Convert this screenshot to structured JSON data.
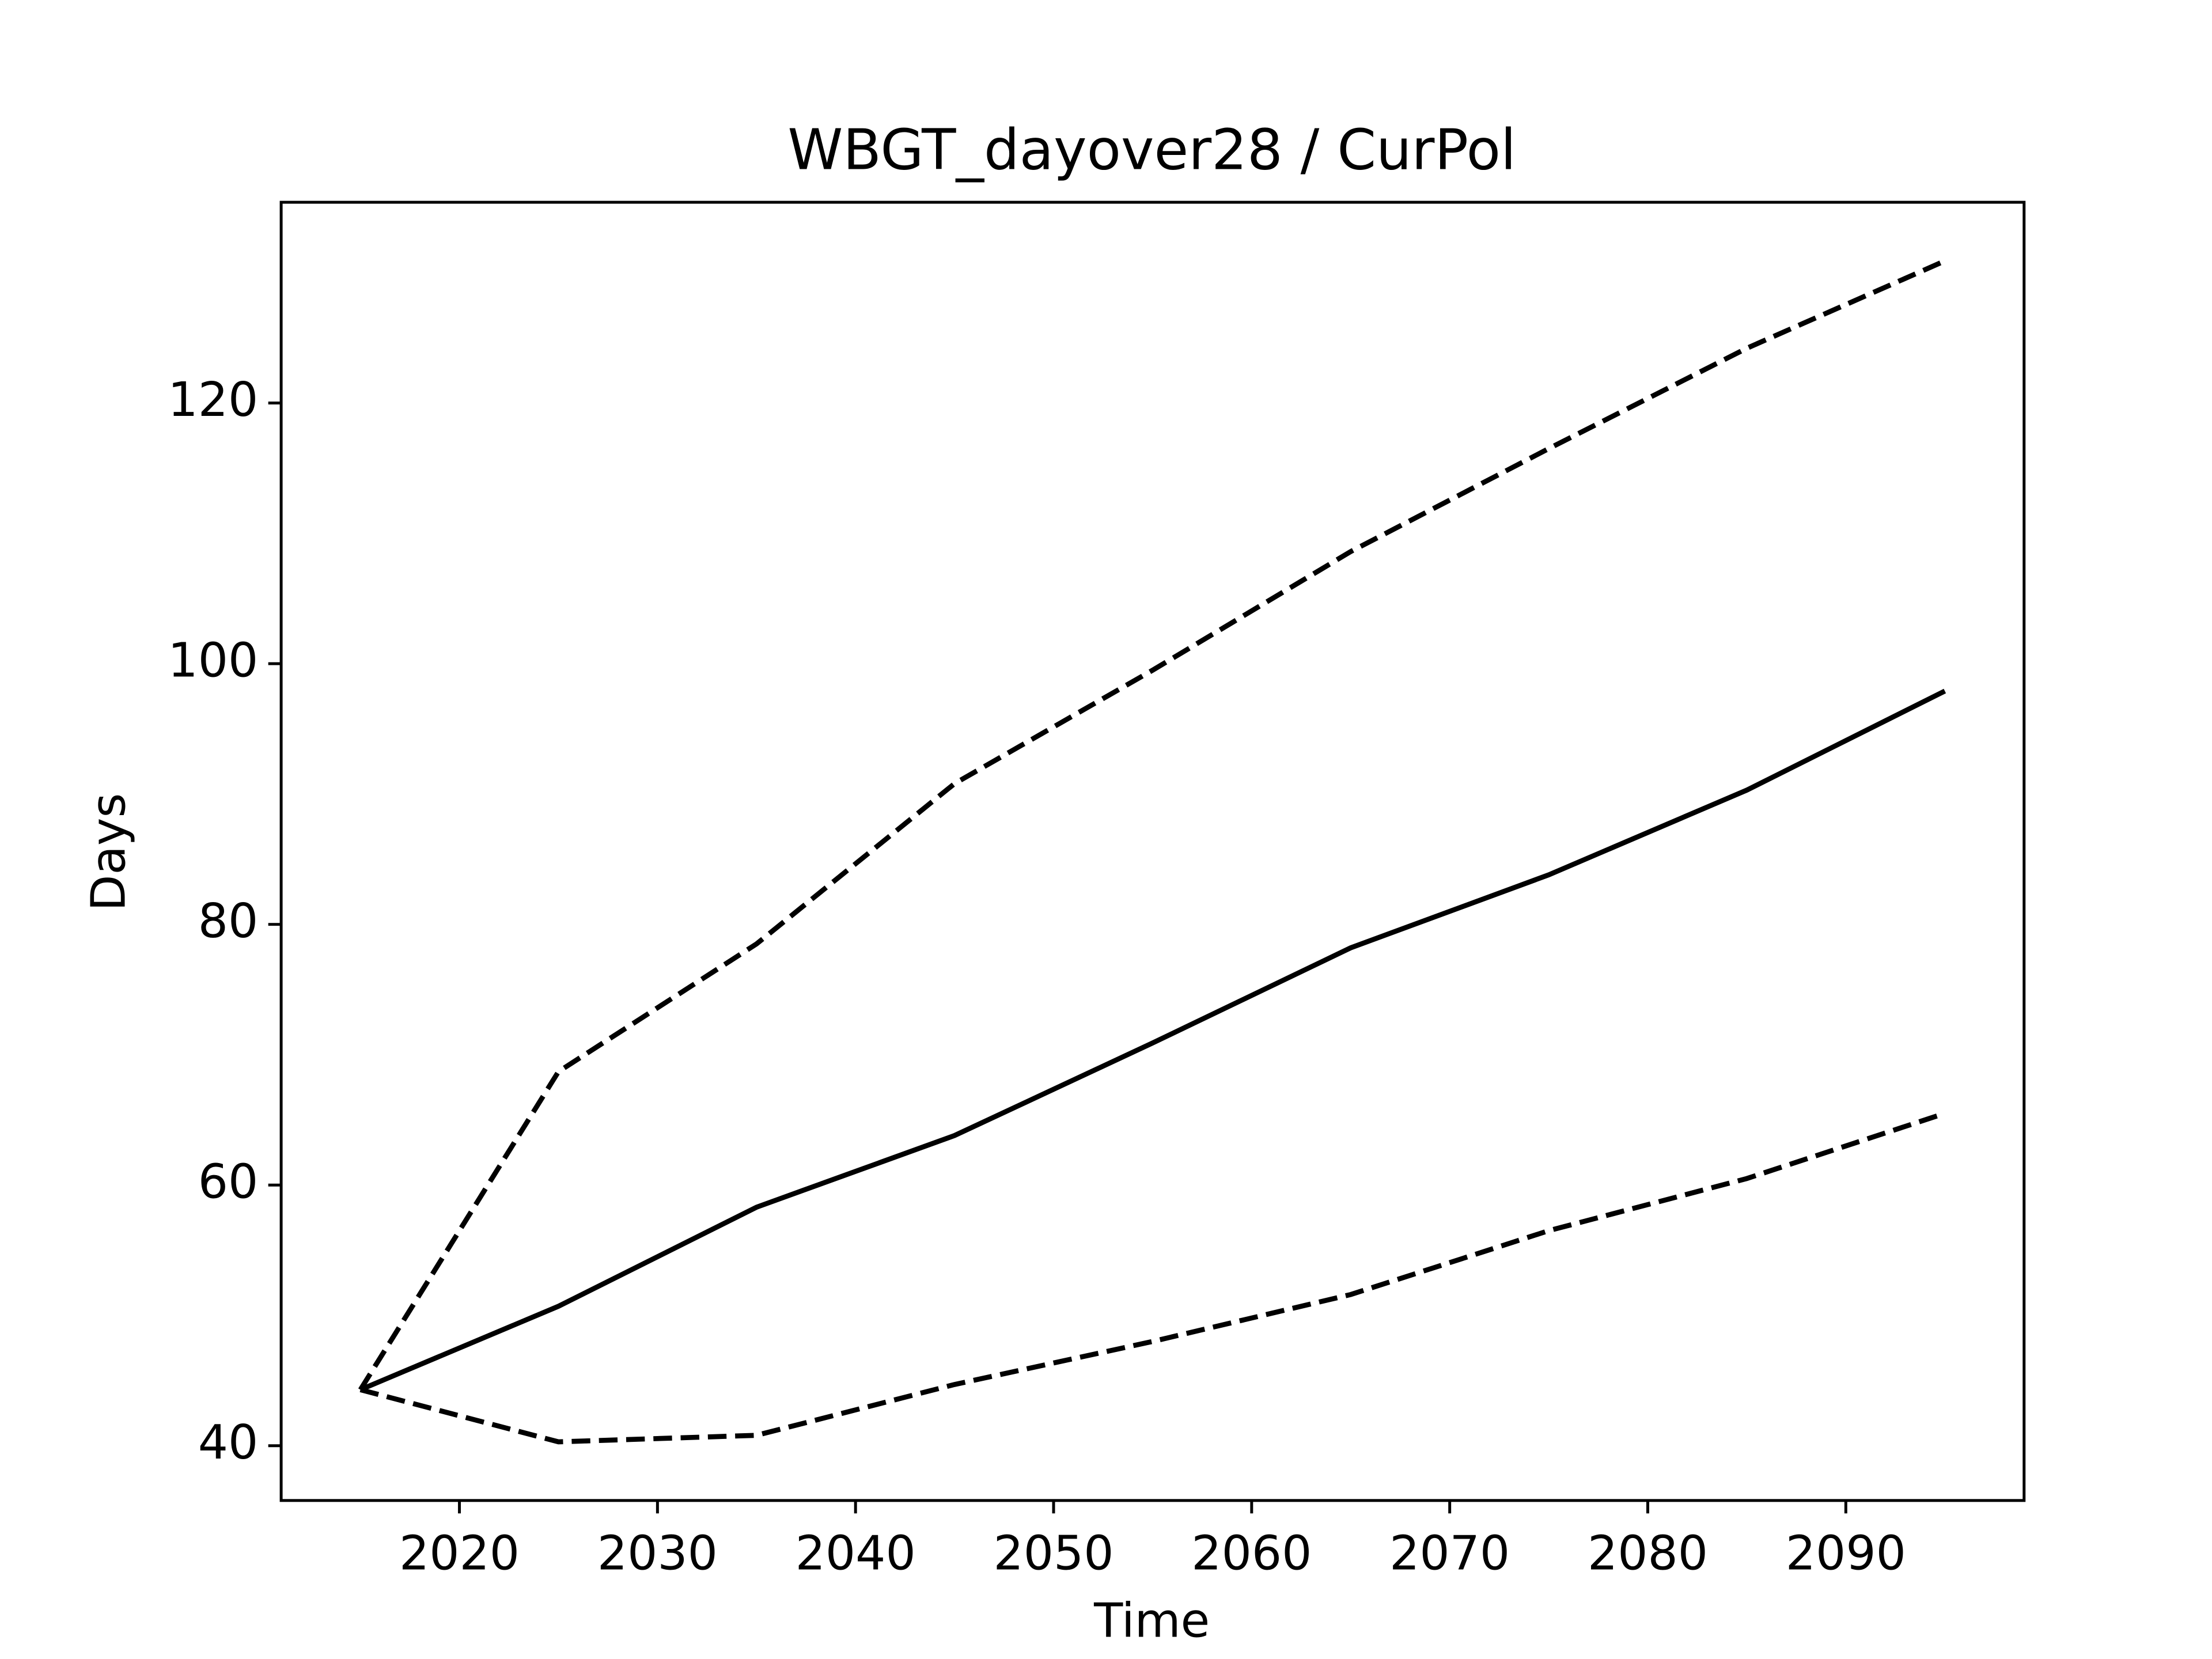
{
  "chart_data": {
    "type": "line",
    "title": "WBGT_dayover28 / CurPol",
    "xlabel": "Time",
    "ylabel": "Days",
    "x": [
      2015,
      2025,
      2035,
      2045,
      2055,
      2065,
      2075,
      2085,
      2095
    ],
    "series": [
      {
        "color": "#000000",
        "linestyle": "solid",
        "values": [
          44.3,
          50.7,
          58.3,
          63.8,
          70.9,
          78.2,
          83.8,
          90.3,
          97.9
        ]
      },
      {
        "color": "#000000",
        "linestyle": "dashed",
        "values": [
          44.3,
          68.7,
          78.5,
          90.8,
          99.5,
          108.6,
          116.5,
          124.2,
          130.9
        ]
      },
      {
        "color": "#000000",
        "linestyle": "dashed",
        "values": [
          44.3,
          40.3,
          40.8,
          44.7,
          48.0,
          51.6,
          56.5,
          60.5,
          65.5
        ]
      }
    ],
    "xlim": [
      2011,
      2099
    ],
    "ylim": [
      35.8,
      135.4
    ],
    "xticks": [
      2020,
      2030,
      2040,
      2050,
      2060,
      2070,
      2080,
      2090
    ],
    "yticks": [
      40,
      60,
      80,
      100,
      120
    ],
    "grid": false
  }
}
